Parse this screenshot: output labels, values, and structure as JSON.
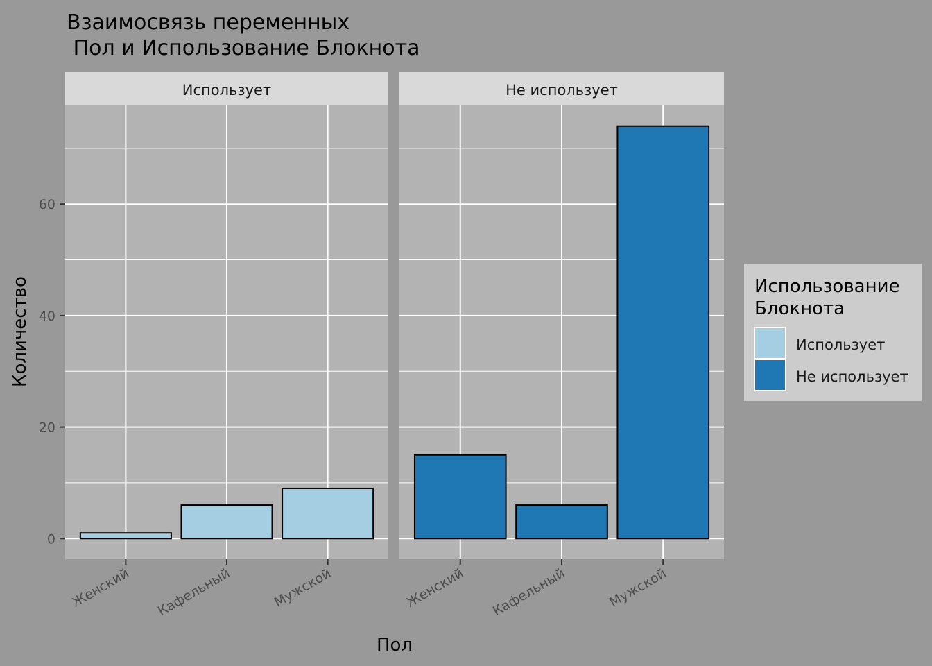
{
  "chart_data": {
    "type": "bar",
    "title_lines": [
      "Взаимосвязь переменных",
      " Пол и Использование Блокнота"
    ],
    "xlabel": "Пол",
    "ylabel": "Количество",
    "categories": [
      "Женский",
      "Кафельный",
      "Мужской"
    ],
    "y_ticks": [
      0,
      20,
      40,
      60
    ],
    "ylim": [
      -3.7,
      77.7
    ],
    "grid": true,
    "facets": [
      {
        "label": "Использует",
        "fill": "#a6cee3",
        "values": [
          1,
          6,
          9
        ]
      },
      {
        "label": "Не использует",
        "fill": "#1f78b4",
        "values": [
          15,
          6,
          74
        ]
      }
    ],
    "legend": {
      "title_lines": [
        "Использование",
        "Блокнота"
      ],
      "position": "right",
      "items": [
        {
          "label": "Использует",
          "color": "#a6cee3"
        },
        {
          "label": "Не использует",
          "color": "#1f78b4"
        }
      ]
    }
  }
}
